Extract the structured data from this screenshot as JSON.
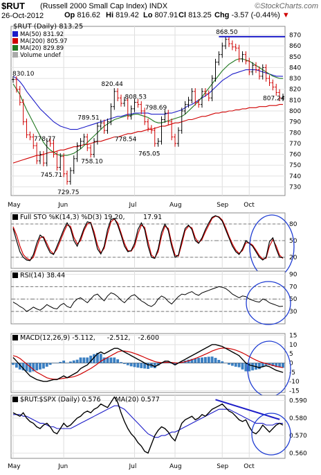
{
  "header": {
    "symbol": "$RUT",
    "name": "(Russell 2000 Small Cap Index)",
    "exchange": "INDX",
    "date": "26-Oct-2012",
    "open_label": "Op",
    "open": "816.62",
    "high_label": "Hi",
    "high": "819.42",
    "low_label": "Lo",
    "low": "807.91",
    "close_label": "Cl",
    "close": "813.25",
    "chg_label": "Chg",
    "chg": "-3.57 (-0.44%)",
    "brand": "©StockCharts.com",
    "down_icon": "down-triangle-icon"
  },
  "colors": {
    "price": "#000000",
    "ma50": "#1c1cc8",
    "ma200": "#d00000",
    "ma20": "#207820",
    "macd_hist": "#3a7fc2",
    "circle": "#1e3cd2",
    "trend": "#1c1cc8",
    "highline": "#1c1cc8"
  },
  "chart_data": [
    {
      "type": "line",
      "panel": "price",
      "legend_title": "$RUT (Daily) 813.25",
      "legend": [
        {
          "name": "MA(50) 831.92",
          "color": "#1c1cc8"
        },
        {
          "name": "MA(200) 805.97",
          "color": "#d00000"
        },
        {
          "name": "MA(20) 829.89",
          "color": "#207820"
        },
        {
          "name": "Volume undef",
          "color": "#aaaaaa"
        }
      ],
      "x_labels": [
        "May",
        "Jun",
        "Jul",
        "Aug",
        "Sep",
        "Oct"
      ],
      "ylim": [
        722,
        878
      ],
      "y_ticks": [
        730,
        740,
        750,
        760,
        770,
        780,
        790,
        800,
        810,
        820,
        830,
        840,
        850,
        860,
        870
      ],
      "close": [
        829,
        820,
        808,
        790,
        778,
        776,
        768,
        754,
        760,
        752,
        772,
        770,
        760,
        748,
        758,
        742,
        735,
        745,
        756,
        768,
        772,
        776,
        766,
        760,
        772,
        786,
        789,
        782,
        790,
        804,
        818,
        812,
        807,
        810,
        795,
        802,
        808,
        806,
        800,
        790,
        784,
        782,
        770,
        772,
        792,
        798,
        790,
        776,
        770,
        782,
        800,
        806,
        810,
        818,
        808,
        806,
        818,
        816,
        812,
        830,
        845,
        852,
        860,
        866,
        862,
        859,
        858,
        848,
        852,
        846,
        836,
        842,
        838,
        832,
        840,
        830,
        826,
        822,
        817,
        812,
        813
      ],
      "ma50": [
        832,
        830,
        827,
        823,
        818,
        814,
        810,
        806,
        802,
        799,
        796,
        793,
        790,
        788,
        786,
        785,
        784,
        783,
        783,
        783,
        784,
        785,
        786,
        787,
        788,
        789,
        790,
        791,
        792,
        793,
        794,
        795,
        795,
        796,
        797,
        797,
        798,
        798,
        798,
        798,
        798,
        797,
        797,
        797,
        797,
        797,
        798,
        798,
        799,
        800,
        801,
        803,
        805,
        806,
        808,
        810,
        812,
        814,
        816,
        819,
        822,
        825,
        828,
        830,
        832,
        834,
        835,
        836,
        837,
        838,
        838,
        838,
        838,
        837,
        836,
        835,
        834,
        833,
        832,
        832,
        831.9
      ],
      "ma200": [
        752,
        753,
        754,
        755,
        756,
        757,
        758,
        759,
        759,
        760,
        761,
        762,
        762,
        763,
        764,
        764,
        765,
        766,
        767,
        767,
        768,
        769,
        769,
        770,
        771,
        772,
        772,
        773,
        774,
        775,
        776,
        776,
        777,
        778,
        779,
        779,
        780,
        781,
        781,
        782,
        783,
        783,
        784,
        785,
        786,
        786,
        787,
        788,
        789,
        789,
        790,
        791,
        792,
        792,
        793,
        794,
        795,
        795,
        796,
        797,
        798,
        798,
        799,
        799,
        800,
        800,
        801,
        801,
        802,
        802,
        803,
        803,
        803,
        804,
        804,
        804,
        805,
        805,
        805,
        806,
        806
      ],
      "ma20": [
        825,
        820,
        815,
        808,
        801,
        795,
        789,
        783,
        777,
        771,
        767,
        764,
        762,
        760,
        759,
        759,
        759,
        760,
        761,
        763,
        765,
        768,
        771,
        774,
        777,
        780,
        783,
        786,
        788,
        790,
        792,
        793,
        794,
        795,
        796,
        796,
        797,
        797,
        796,
        795,
        794,
        792,
        790,
        789,
        789,
        790,
        791,
        792,
        793,
        794,
        795,
        797,
        800,
        803,
        806,
        809,
        813,
        817,
        821,
        825,
        829,
        833,
        837,
        840,
        843,
        845,
        847,
        848,
        848,
        847,
        846,
        844,
        842,
        840,
        838,
        836,
        834,
        832,
        831,
        830,
        829.9
      ],
      "annotations": [
        {
          "text": "830.10",
          "i": 0,
          "v": 830.1
        },
        {
          "text": "778.77",
          "i": 9,
          "v": 778.77
        },
        {
          "text": "745.71",
          "i": 11,
          "v": 745.71
        },
        {
          "text": "729.75",
          "i": 16,
          "v": 729.75
        },
        {
          "text": "789.51",
          "i": 22,
          "v": 789.51
        },
        {
          "text": "758.10",
          "i": 23,
          "v": 758.1
        },
        {
          "text": "820.44",
          "i": 29,
          "v": 820.44
        },
        {
          "text": "808.53",
          "i": 36,
          "v": 808.53
        },
        {
          "text": "778.54",
          "i": 33,
          "v": 778.54
        },
        {
          "text": "798.69",
          "i": 42,
          "v": 798.69
        },
        {
          "text": "765.05",
          "i": 40,
          "v": 765.05
        },
        {
          "text": "868.50",
          "i": 63,
          "v": 868.5
        },
        {
          "text": "807.24",
          "i": 78,
          "v": 807.24
        }
      ],
      "high_line": {
        "value": 868.5,
        "from_i": 61,
        "to_i": 80
      }
    },
    {
      "type": "line",
      "panel": "stochastic",
      "legend": [
        {
          "name": "Full STO %K(14,3) %D(3) 19.20,",
          "color": "#000000"
        },
        {
          "name": "17.91",
          "color": "#d00000"
        }
      ],
      "ylim": [
        0,
        100
      ],
      "y_ticks": [
        20,
        50,
        80
      ],
      "k": [
        72,
        50,
        30,
        20,
        15,
        14,
        25,
        45,
        60,
        55,
        40,
        28,
        25,
        40,
        55,
        70,
        82,
        72,
        50,
        40,
        55,
        72,
        84,
        82,
        60,
        35,
        26,
        40,
        70,
        88,
        90,
        78,
        60,
        40,
        30,
        32,
        45,
        70,
        82,
        70,
        40,
        20,
        18,
        35,
        65,
        80,
        68,
        40,
        20,
        24,
        50,
        72,
        78,
        70,
        50,
        45,
        55,
        70,
        82,
        92,
        95,
        92,
        85,
        70,
        55,
        40,
        30,
        25,
        35,
        50,
        45,
        40,
        30,
        20,
        15,
        20,
        48,
        55,
        35,
        20,
        19.2
      ],
      "d": [
        75,
        60,
        40,
        25,
        18,
        15,
        20,
        38,
        55,
        57,
        45,
        32,
        26,
        35,
        50,
        65,
        78,
        76,
        56,
        44,
        50,
        68,
        80,
        83,
        66,
        42,
        28,
        36,
        62,
        84,
        89,
        82,
        64,
        45,
        32,
        31,
        40,
        62,
        78,
        74,
        48,
        24,
        19,
        30,
        58,
        76,
        72,
        46,
        24,
        22,
        44,
        68,
        76,
        73,
        55,
        46,
        52,
        66,
        78,
        90,
        94,
        93,
        87,
        74,
        58,
        44,
        33,
        27,
        32,
        46,
        46,
        42,
        33,
        23,
        17,
        18,
        40,
        52,
        40,
        24,
        17.91
      ]
    },
    {
      "type": "line",
      "panel": "rsi",
      "legend": [
        {
          "name": "RSI(14) 38.44",
          "color": "#000000"
        }
      ],
      "ylim": [
        10,
        95
      ],
      "y_ticks": [
        30,
        50,
        70,
        90
      ],
      "values": [
        45,
        42,
        38,
        35,
        30,
        33,
        37,
        34,
        32,
        36,
        41,
        38,
        35,
        34,
        40,
        43,
        38,
        36,
        45,
        50,
        52,
        48,
        44,
        50,
        56,
        58,
        52,
        47,
        55,
        60,
        58,
        54,
        48,
        44,
        50,
        55,
        57,
        52,
        47,
        44,
        40,
        38,
        42,
        50,
        55,
        52,
        46,
        42,
        48,
        54,
        58,
        57,
        60,
        62,
        58,
        56,
        60,
        62,
        64,
        66,
        68,
        70,
        69,
        67,
        63,
        58,
        55,
        52,
        55,
        54,
        50,
        48,
        46,
        45,
        50,
        48,
        44,
        42,
        40,
        38,
        38.44
      ]
    },
    {
      "type": "line",
      "panel": "macd",
      "legend": [
        {
          "name": "MACD(12,26,9) -5.112,",
          "color": "#000000"
        },
        {
          "name": "-2.512,",
          "color": "#d00000"
        },
        {
          "name": "-2.600",
          "color": "#3a7fc2"
        }
      ],
      "ylim": [
        -16,
        16
      ],
      "y_ticks": [
        -15,
        -10,
        -5,
        0,
        5,
        10,
        15
      ],
      "macd": [
        3,
        1,
        -1,
        -3,
        -5,
        -7,
        -8,
        -9,
        -9.5,
        -10,
        -10,
        -9.5,
        -9,
        -9,
        -8,
        -7,
        -8,
        -7,
        -6,
        -5,
        -3,
        -2,
        -1,
        1,
        3,
        5,
        6,
        5,
        6,
        7,
        8,
        8,
        7,
        6,
        5,
        4,
        3,
        2,
        1,
        0,
        -1,
        -1,
        -2,
        -1,
        0,
        1,
        1,
        0,
        -1,
        0,
        1,
        2,
        3,
        4,
        5,
        6,
        7,
        8,
        9,
        10,
        10,
        9.5,
        9,
        8,
        7,
        6,
        5,
        4,
        2,
        0,
        -1,
        -1.5,
        -2,
        -2.5,
        -2,
        -1.5,
        -2,
        -3,
        -4,
        -4.5,
        -5.112
      ],
      "signal": [
        4,
        3.5,
        2.5,
        1,
        -0.5,
        -2,
        -3.5,
        -5,
        -6,
        -7,
        -8,
        -8.5,
        -8.8,
        -8.8,
        -8.6,
        -8.3,
        -8,
        -7.8,
        -7.4,
        -6.8,
        -6,
        -5,
        -4,
        -3,
        -1.8,
        -0.5,
        1,
        2,
        3,
        4,
        5,
        6,
        6.5,
        6.5,
        6.2,
        5.8,
        5.2,
        4.5,
        3.8,
        3,
        2.2,
        1.5,
        0.8,
        0.4,
        0.2,
        0.3,
        0.4,
        0.3,
        0.1,
        0,
        0.3,
        0.7,
        1.2,
        1.8,
        2.5,
        3.2,
        4,
        4.8,
        5.6,
        6.5,
        7.2,
        7.8,
        8.1,
        8.1,
        7.9,
        7.5,
        7,
        6.3,
        5.5,
        4.5,
        3.5,
        2.5,
        1.6,
        0.8,
        0.2,
        -0.3,
        -0.8,
        -1.3,
        -1.8,
        -2.2,
        -2.512
      ],
      "hist": [
        -1,
        -2.5,
        -3.5,
        -4,
        -4.5,
        -5,
        -4.5,
        -4,
        -3.5,
        -3,
        -2,
        -1,
        -0.2,
        -0.2,
        0.6,
        1.3,
        0,
        0.8,
        1.4,
        1.8,
        3,
        3,
        3,
        4,
        4.8,
        5.5,
        5,
        3,
        3,
        3,
        3,
        2,
        0.5,
        -0.5,
        -1.2,
        -1.8,
        -2.2,
        -2.5,
        -2.8,
        -3,
        -3.2,
        -2.5,
        -2.8,
        -1.4,
        -0.2,
        0.7,
        0.6,
        -0.3,
        -1.1,
        0,
        0.7,
        1.3,
        1.8,
        2.2,
        2.5,
        2.8,
        3,
        3.2,
        3.4,
        3.5,
        2.8,
        1.7,
        0.9,
        -0.1,
        -0.9,
        -1.5,
        -2,
        -2.3,
        -3.5,
        -4.5,
        -4.5,
        -4,
        -3.6,
        -3.3,
        -2.2,
        -1.2,
        -1.2,
        -1.7,
        -2.2,
        -2.3,
        -2.6
      ]
    },
    {
      "type": "line",
      "panel": "ratio",
      "legend": [
        {
          "name": "$RUT:$SPX (Daily) 0.576",
          "color": "#000000"
        },
        {
          "name": "MA(20) 0.577",
          "color": "#1c1cc8"
        }
      ],
      "x_labels": [
        "May",
        "Jun",
        "Jul",
        "Aug",
        "Sep",
        "Oct"
      ],
      "ylim": [
        0.557,
        0.593
      ],
      "y_ticks": [
        0.56,
        0.57,
        0.58,
        0.59
      ],
      "values": [
        0.583,
        0.582,
        0.581,
        0.583,
        0.58,
        0.578,
        0.577,
        0.575,
        0.574,
        0.576,
        0.577,
        0.575,
        0.572,
        0.571,
        0.574,
        0.577,
        0.575,
        0.576,
        0.578,
        0.58,
        0.581,
        0.583,
        0.584,
        0.583,
        0.585,
        0.586,
        0.588,
        0.587,
        0.586,
        0.589,
        0.592,
        0.589,
        0.583,
        0.578,
        0.574,
        0.571,
        0.569,
        0.566,
        0.564,
        0.561,
        0.56,
        0.565,
        0.57,
        0.573,
        0.575,
        0.574,
        0.572,
        0.569,
        0.567,
        0.572,
        0.577,
        0.579,
        0.58,
        0.581,
        0.579,
        0.58,
        0.582,
        0.581,
        0.583,
        0.585,
        0.586,
        0.587,
        0.588,
        0.586,
        0.584,
        0.583,
        0.581,
        0.579,
        0.578,
        0.579,
        0.575,
        0.572,
        0.571,
        0.573,
        0.576,
        0.574,
        0.572,
        0.574,
        0.576,
        0.577,
        0.576
      ],
      "ma20": [
        0.582,
        0.582,
        0.582,
        0.581,
        0.581,
        0.58,
        0.579,
        0.578,
        0.577,
        0.577,
        0.576,
        0.575,
        0.575,
        0.574,
        0.574,
        0.574,
        0.574,
        0.574,
        0.575,
        0.576,
        0.577,
        0.578,
        0.579,
        0.58,
        0.581,
        0.582,
        0.583,
        0.584,
        0.585,
        0.586,
        0.587,
        0.587,
        0.586,
        0.585,
        0.583,
        0.581,
        0.579,
        0.577,
        0.575,
        0.573,
        0.571,
        0.57,
        0.569,
        0.569,
        0.57,
        0.57,
        0.571,
        0.572,
        0.572,
        0.573,
        0.574,
        0.575,
        0.576,
        0.577,
        0.578,
        0.579,
        0.58,
        0.581,
        0.582,
        0.583,
        0.584,
        0.585,
        0.585,
        0.585,
        0.585,
        0.584,
        0.583,
        0.582,
        0.581,
        0.58,
        0.579,
        0.578,
        0.577,
        0.577,
        0.577,
        0.576,
        0.576,
        0.576,
        0.577,
        0.577,
        0.577
      ]
    }
  ]
}
